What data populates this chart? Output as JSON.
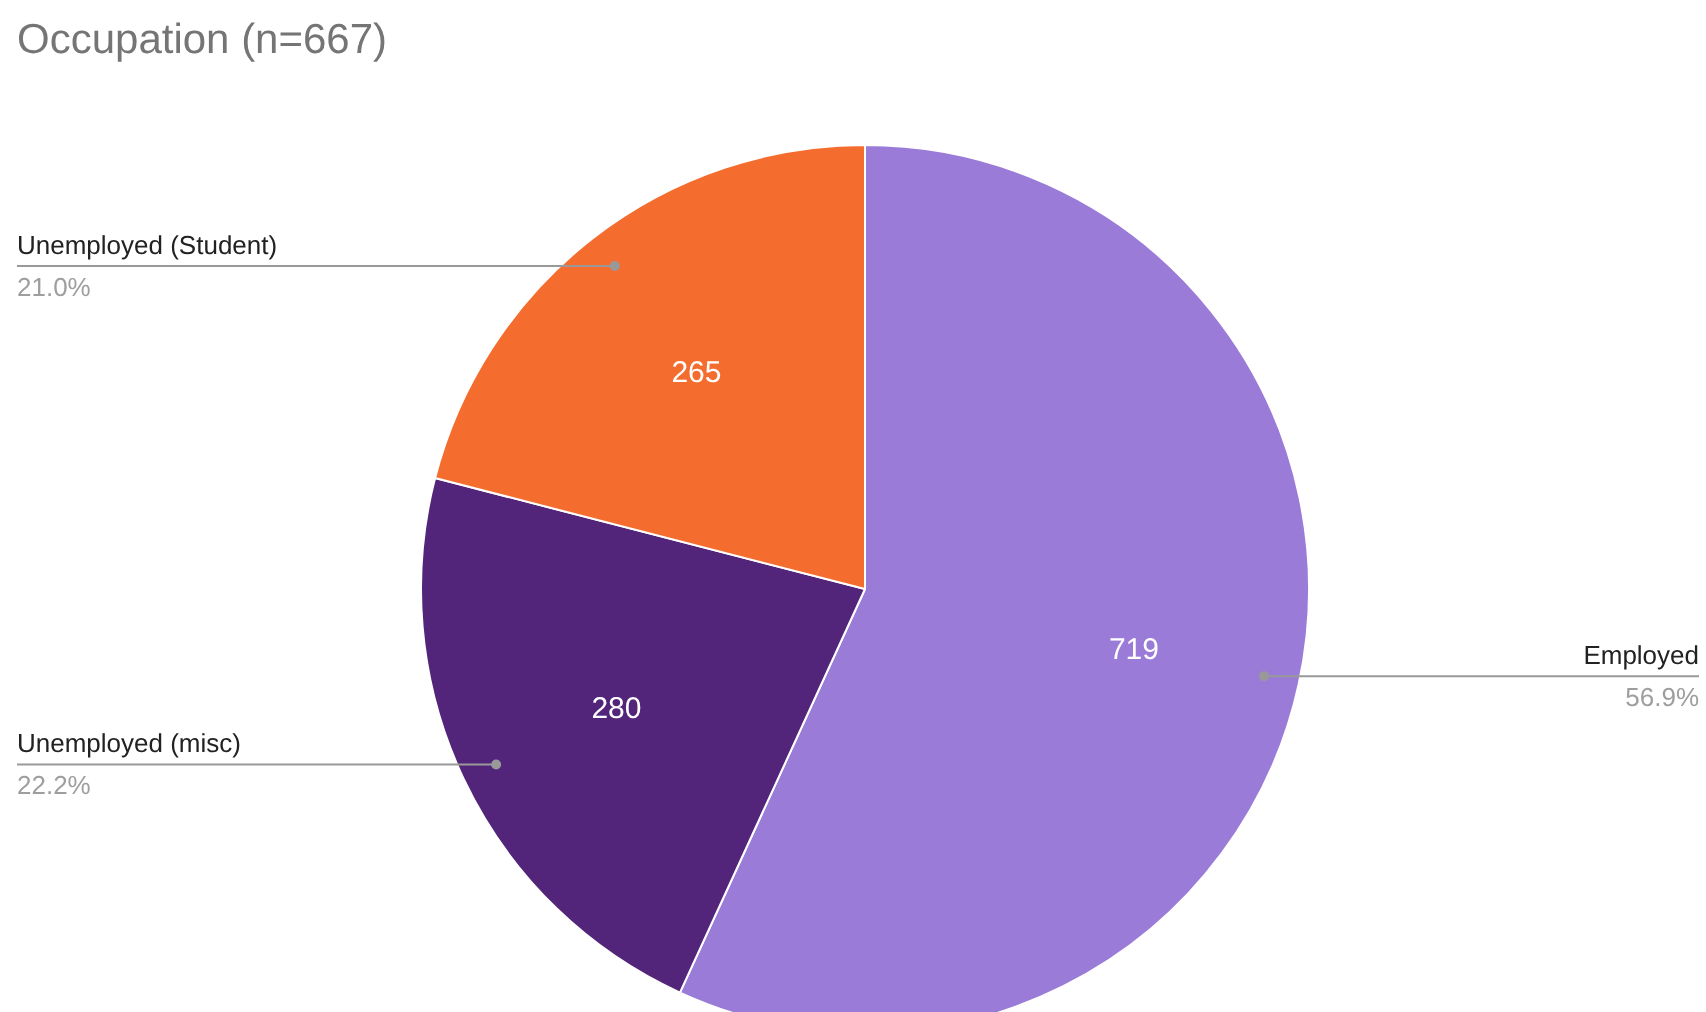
{
  "chart_data": {
    "type": "pie",
    "title": "Occupation (n=667)",
    "categories": [
      "Employed",
      "Unemployed (misc)",
      "Unemployed (Student)"
    ],
    "values": [
      56.9,
      22.2,
      21.0
    ],
    "colors": [
      "#9a7bd8",
      "#52247a",
      "#f46d2e"
    ],
    "value_labels": [
      "56.9%",
      "22.2%",
      "21.0%"
    ],
    "annotations": [
      {
        "text": "719",
        "x": "Employed"
      },
      {
        "text": "280",
        "x": "Unemployed (misc)"
      },
      {
        "text": "265",
        "x": "Unemployed (Student)"
      }
    ]
  }
}
